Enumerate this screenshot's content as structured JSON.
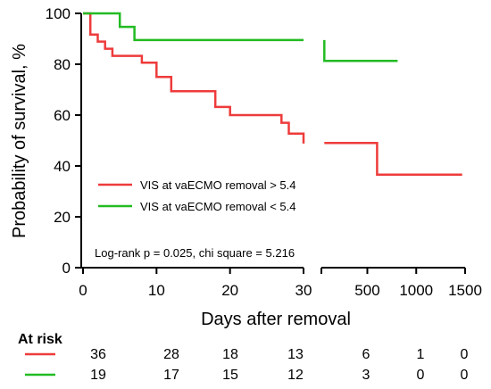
{
  "chart_data": {
    "type": "line",
    "subtype": "kaplan-meier-step",
    "xlabel": "Days after removal",
    "ylabel": "Probability of survival, %",
    "ylim": [
      0,
      100
    ],
    "yticks": [
      0,
      20,
      40,
      60,
      80,
      100
    ],
    "x_segments": [
      {
        "range": [
          0,
          30
        ],
        "ticks": [
          0,
          10,
          20,
          30
        ]
      },
      {
        "range": [
          30,
          1500
        ],
        "ticks": [
          500,
          1000,
          1500
        ]
      }
    ],
    "colors": {
      "vis_high": "#ee3b3b",
      "vis_low": "#22bb22"
    },
    "series": [
      {
        "key": "vis_high",
        "name": "VIS at vaECMO removal > 5.4",
        "color": "#ee3b3b",
        "points": [
          [
            0,
            100
          ],
          [
            1,
            100
          ],
          [
            1,
            91.7
          ],
          [
            2,
            91.7
          ],
          [
            2,
            88.9
          ],
          [
            3,
            88.9
          ],
          [
            3,
            86.1
          ],
          [
            4,
            86.1
          ],
          [
            4,
            83.3
          ],
          [
            8,
            83.3
          ],
          [
            8,
            80.6
          ],
          [
            10,
            80.6
          ],
          [
            10,
            75
          ],
          [
            12,
            75
          ],
          [
            12,
            69.4
          ],
          [
            18,
            69.4
          ],
          [
            18,
            63.2
          ],
          [
            20,
            63.2
          ],
          [
            20,
            60
          ],
          [
            27,
            60
          ],
          [
            27,
            57
          ],
          [
            28,
            57
          ],
          [
            28,
            52.7
          ],
          [
            30,
            52.7
          ],
          [
            30,
            48.8
          ]
        ],
        "points_late": [
          [
            60,
            49
          ],
          [
            600,
            49
          ],
          [
            600,
            36.6
          ],
          [
            1470,
            36.6
          ]
        ]
      },
      {
        "key": "vis_low",
        "name": "VIS at vaECMO removal < 5.4",
        "color": "#22bb22",
        "points": [
          [
            0,
            100
          ],
          [
            5,
            100
          ],
          [
            5,
            94.7
          ],
          [
            7,
            94.7
          ],
          [
            7,
            89.5
          ],
          [
            30,
            89.5
          ]
        ],
        "points_late": [
          [
            60,
            89.5
          ],
          [
            60,
            81.3
          ],
          [
            810,
            81.3
          ]
        ]
      }
    ],
    "legend_position": "center-left",
    "annotation": "Log-rank p = 0.025, chi square = 5.216",
    "risk_table": {
      "title": "At risk",
      "rows": [
        {
          "key": "vis_high",
          "color": "#ee3b3b",
          "values": [
            36,
            28,
            18,
            13,
            6,
            1,
            0
          ]
        },
        {
          "key": "vis_low",
          "color": "#22bb22",
          "values": [
            19,
            17,
            15,
            12,
            3,
            0,
            0
          ]
        }
      ]
    }
  }
}
